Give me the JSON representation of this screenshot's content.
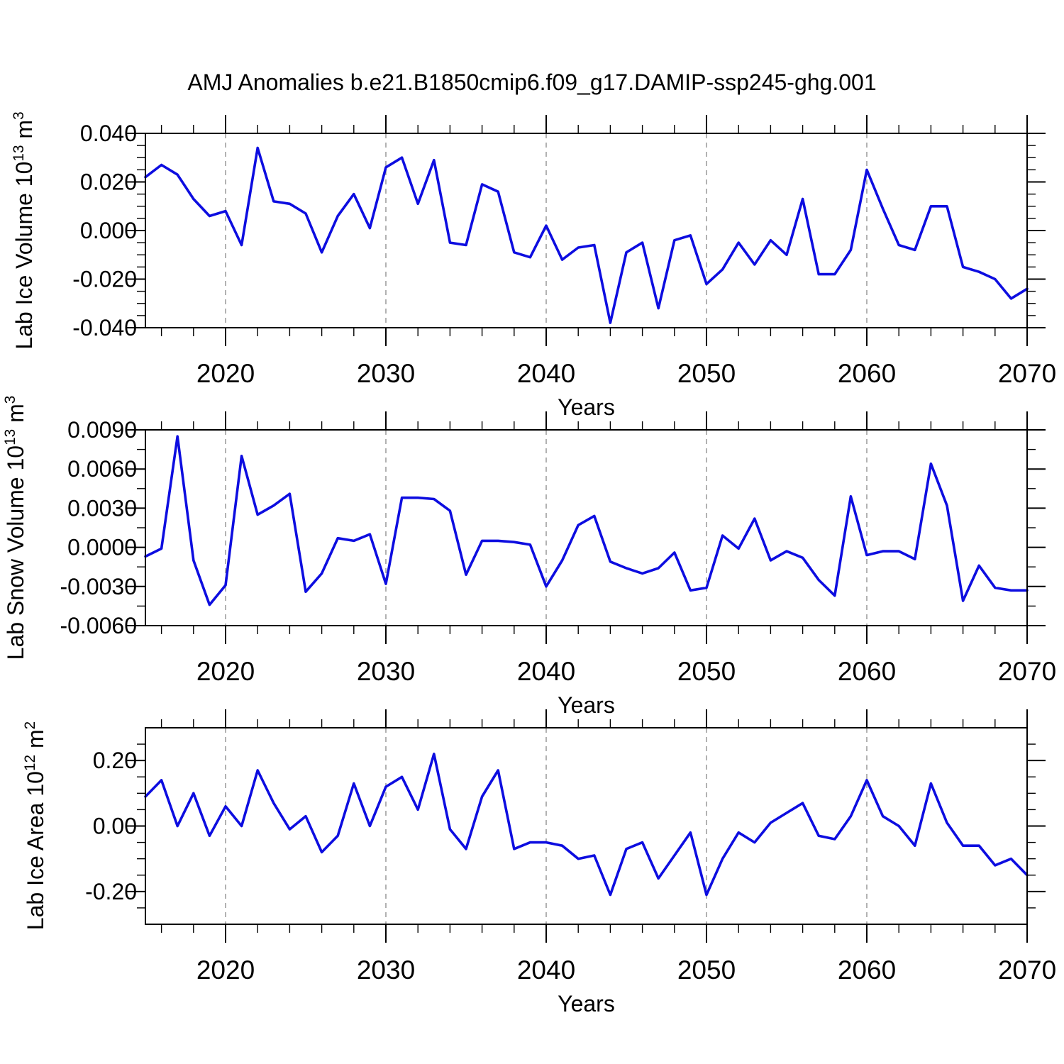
{
  "title": "AMJ Anomalies b.e21.B1850cmip6.f09_g17.DAMIP-ssp245-ghg.001",
  "colors": {
    "line": "#0d0de0",
    "grid": "#999999",
    "axis": "#000000",
    "text": "#000000",
    "background": "#ffffff"
  },
  "chart_data": {
    "type": "line",
    "title": "AMJ Anomalies b.e21.B1850cmip6.f09_g17.DAMIP-ssp245-ghg.001",
    "legend": "none",
    "grid": "vertical-dashed-at-decades",
    "xlim": [
      2015,
      2070
    ],
    "xticks": [
      2020,
      2030,
      2040,
      2050,
      2060,
      2070
    ],
    "xtick_minor_step": 2,
    "grid_years": [
      2020,
      2030,
      2040,
      2050,
      2060
    ],
    "years": [
      2015,
      2016,
      2017,
      2018,
      2019,
      2020,
      2021,
      2022,
      2023,
      2024,
      2025,
      2026,
      2027,
      2028,
      2029,
      2030,
      2031,
      2032,
      2033,
      2034,
      2035,
      2036,
      2037,
      2038,
      2039,
      2040,
      2041,
      2042,
      2043,
      2044,
      2045,
      2046,
      2047,
      2048,
      2049,
      2050,
      2051,
      2052,
      2053,
      2054,
      2055,
      2056,
      2057,
      2058,
      2059,
      2060,
      2061,
      2062,
      2063,
      2064,
      2065,
      2066,
      2067,
      2068,
      2069,
      2070
    ],
    "panels": [
      {
        "name": "lab-ice-volume",
        "ylabel": "Lab Ice Volume 10^13 m^3",
        "xlabel": "Years",
        "ylim": [
          -0.04,
          0.04
        ],
        "yticks": [
          0.04,
          0.02,
          0.0,
          -0.02,
          -0.04
        ],
        "ytick_minor_step": 0.005,
        "ytick_decimals": 3,
        "values": [
          0.022,
          0.027,
          0.023,
          0.013,
          0.006,
          0.008,
          -0.006,
          0.034,
          0.012,
          0.011,
          0.007,
          -0.009,
          0.006,
          0.015,
          0.001,
          0.026,
          0.03,
          0.011,
          0.029,
          -0.005,
          -0.006,
          0.019,
          0.016,
          -0.009,
          -0.011,
          0.002,
          -0.012,
          -0.007,
          -0.006,
          -0.038,
          -0.009,
          -0.005,
          -0.032,
          -0.004,
          -0.002,
          -0.022,
          -0.016,
          -0.005,
          -0.014,
          -0.004,
          -0.01,
          0.013,
          -0.018,
          -0.018,
          -0.008,
          0.025,
          0.009,
          -0.006,
          -0.008,
          0.01,
          0.01,
          -0.015,
          -0.017,
          -0.02,
          -0.028,
          -0.024
        ]
      },
      {
        "name": "lab-snow-volume",
        "ylabel": "Lab Snow Volume 10^13 m^3",
        "xlabel": "Years",
        "ylim": [
          -0.006,
          0.009
        ],
        "yticks": [
          0.009,
          0.006,
          0.003,
          0.0,
          -0.003,
          -0.006
        ],
        "ytick_minor_step": 0.0015,
        "ytick_decimals": 4,
        "values": [
          -0.0007,
          -0.0001,
          0.0085,
          -0.001,
          -0.0044,
          -0.0029,
          0.007,
          0.0025,
          0.0032,
          0.0041,
          -0.0034,
          -0.002,
          0.0007,
          0.0005,
          0.001,
          -0.0028,
          0.0038,
          0.0038,
          0.0037,
          0.0028,
          -0.0021,
          0.0005,
          0.0005,
          0.0004,
          0.0002,
          -0.003,
          -0.001,
          0.0017,
          0.0024,
          -0.0011,
          -0.0016,
          -0.002,
          -0.0016,
          -0.0004,
          -0.0033,
          -0.0031,
          0.0009,
          -0.0001,
          0.0022,
          -0.001,
          -0.0003,
          -0.0008,
          -0.0025,
          -0.0037,
          0.0039,
          -0.0006,
          -0.0003,
          -0.0003,
          -0.0009,
          0.0064,
          0.0032,
          -0.0041,
          -0.0014,
          -0.0031,
          -0.0033,
          -0.0033
        ]
      },
      {
        "name": "lab-ice-area",
        "ylabel": "Lab Ice Area 10^12 m^2",
        "xlabel": "Years",
        "ylim": [
          -0.3,
          0.3
        ],
        "yticks": [
          0.2,
          0.0,
          -0.2
        ],
        "ytick_minor_step": 0.05,
        "ytick_decimals": 2,
        "values": [
          0.09,
          0.14,
          0.0,
          0.1,
          -0.03,
          0.06,
          0.0,
          0.17,
          0.07,
          -0.01,
          0.03,
          -0.08,
          -0.03,
          0.13,
          0.0,
          0.12,
          0.15,
          0.05,
          0.22,
          -0.01,
          -0.07,
          0.09,
          0.17,
          -0.07,
          -0.05,
          -0.05,
          -0.06,
          -0.1,
          -0.09,
          -0.21,
          -0.07,
          -0.05,
          -0.16,
          -0.09,
          -0.02,
          -0.21,
          -0.1,
          -0.02,
          -0.05,
          0.01,
          0.04,
          0.07,
          -0.03,
          -0.04,
          0.03,
          0.14,
          0.03,
          0.0,
          -0.06,
          0.13,
          0.01,
          -0.06,
          -0.06,
          -0.12,
          -0.1,
          -0.15
        ]
      }
    ]
  }
}
